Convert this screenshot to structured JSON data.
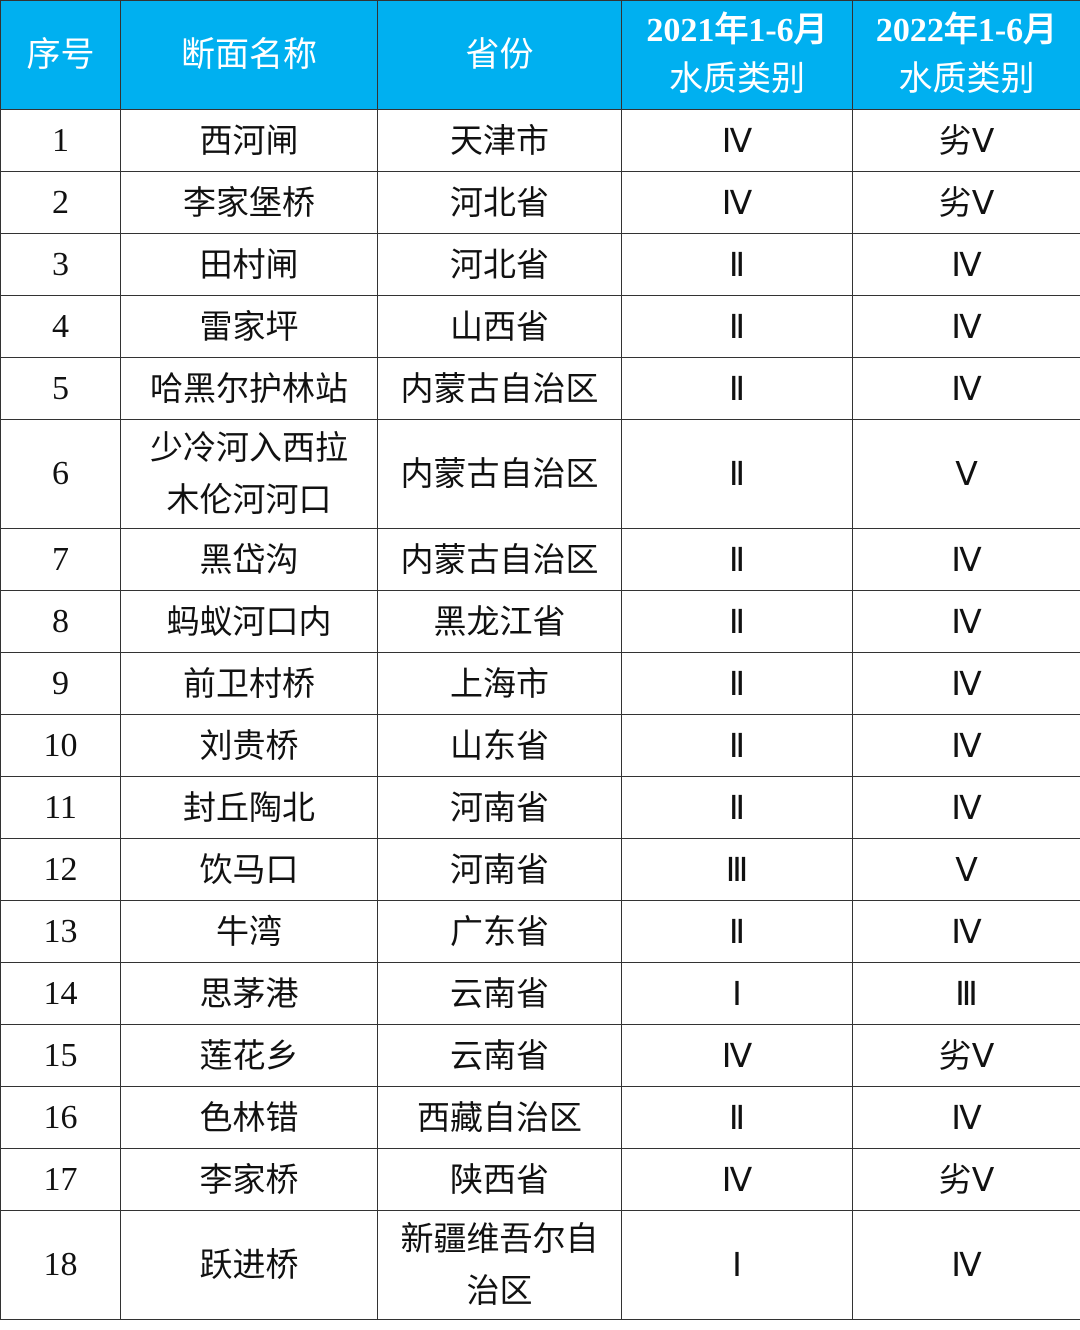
{
  "header_color": "#00b0f0",
  "headers": {
    "index": "序号",
    "section": "断面名称",
    "province": "省份",
    "y2021_line1": "2021年1-6月",
    "y2021_line2": "水质类别",
    "y2022_line1": "2022年1-6月",
    "y2022_line2": "水质类别"
  },
  "rows": [
    {
      "index": "1",
      "section": "西河闸",
      "province": "天津市",
      "q2021": "Ⅳ",
      "q2022": "劣Ⅴ"
    },
    {
      "index": "2",
      "section": "李家堡桥",
      "province": "河北省",
      "q2021": "Ⅳ",
      "q2022": "劣Ⅴ"
    },
    {
      "index": "3",
      "section": "田村闸",
      "province": "河北省",
      "q2021": "Ⅱ",
      "q2022": "Ⅳ"
    },
    {
      "index": "4",
      "section": "雷家坪",
      "province": "山西省",
      "q2021": "Ⅱ",
      "q2022": "Ⅳ"
    },
    {
      "index": "5",
      "section": "哈黑尔护林站",
      "province": "内蒙古自治区",
      "q2021": "Ⅱ",
      "q2022": "Ⅳ"
    },
    {
      "index": "6",
      "section": "少冷河入西拉木伦河河口",
      "province": "内蒙古自治区",
      "q2021": "Ⅱ",
      "q2022": "Ⅴ"
    },
    {
      "index": "7",
      "section": "黑岱沟",
      "province": "内蒙古自治区",
      "q2021": "Ⅱ",
      "q2022": "Ⅳ"
    },
    {
      "index": "8",
      "section": "蚂蚁河口内",
      "province": "黑龙江省",
      "q2021": "Ⅱ",
      "q2022": "Ⅳ"
    },
    {
      "index": "9",
      "section": "前卫村桥",
      "province": "上海市",
      "q2021": "Ⅱ",
      "q2022": "Ⅳ"
    },
    {
      "index": "10",
      "section": "刘贵桥",
      "province": "山东省",
      "q2021": "Ⅱ",
      "q2022": "Ⅳ"
    },
    {
      "index": "11",
      "section": "封丘陶北",
      "province": "河南省",
      "q2021": "Ⅱ",
      "q2022": "Ⅳ"
    },
    {
      "index": "12",
      "section": "饮马口",
      "province": "河南省",
      "q2021": "Ⅲ",
      "q2022": "Ⅴ"
    },
    {
      "index": "13",
      "section": "牛湾",
      "province": "广东省",
      "q2021": "Ⅱ",
      "q2022": "Ⅳ"
    },
    {
      "index": "14",
      "section": "思茅港",
      "province": "云南省",
      "q2021": "Ⅰ",
      "q2022": "Ⅲ"
    },
    {
      "index": "15",
      "section": "莲花乡",
      "province": "云南省",
      "q2021": "Ⅳ",
      "q2022": "劣Ⅴ"
    },
    {
      "index": "16",
      "section": "色林错",
      "province": "西藏自治区",
      "q2021": "Ⅱ",
      "q2022": "Ⅳ"
    },
    {
      "index": "17",
      "section": "李家桥",
      "province": "陕西省",
      "q2021": "Ⅳ",
      "q2022": "劣Ⅴ"
    },
    {
      "index": "18",
      "section": "跃进桥",
      "province": "新疆维吾尔自治区",
      "q2021": "Ⅰ",
      "q2022": "Ⅳ"
    }
  ]
}
